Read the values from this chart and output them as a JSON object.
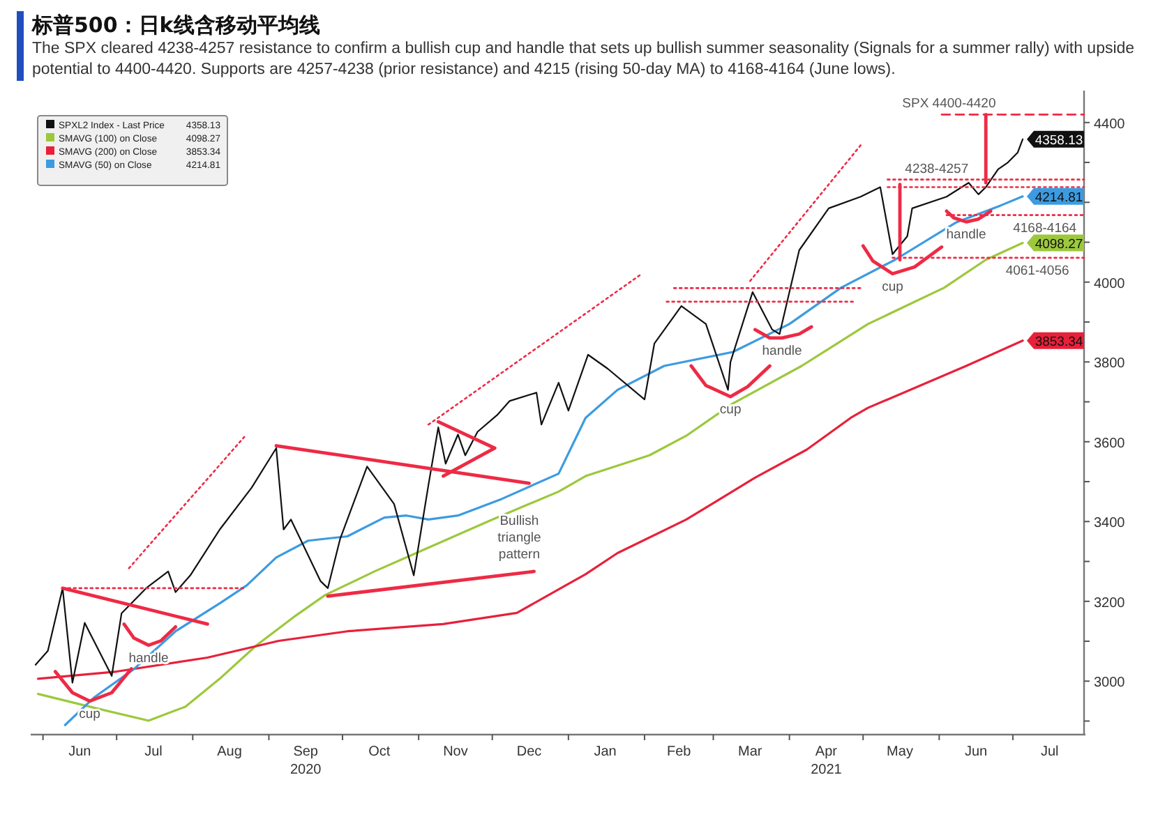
{
  "chart_data": {
    "type": "line",
    "title": "标普500：日k线含移动平均线",
    "subtitle": "The SPX cleared 4238-4257 resistance to confirm a bullish cup and handle that sets up bullish summer seasonality (Signals for a summer rally) with upside potential to 4400-4420. Supports are 4257-4238 (prior resistance) and 4215 (rising 50-day MA) to 4168-4164 (June lows).",
    "xlim": [
      "2020-05-27",
      "2021-07-30"
    ],
    "xticks": [
      {
        "value": "2020-06-01",
        "label": null
      },
      {
        "value": "2020-06-16",
        "label": "Jun"
      },
      {
        "value": "2020-07-01",
        "label": null
      },
      {
        "value": "2020-07-16",
        "label": "Jul"
      },
      {
        "value": "2020-08-01",
        "label": null
      },
      {
        "value": "2020-08-16",
        "label": "Aug"
      },
      {
        "value": "2020-09-01",
        "label": null
      },
      {
        "value": "2020-09-16",
        "label": "Sep\n2020"
      },
      {
        "value": "2020-10-01",
        "label": null
      },
      {
        "value": "2020-10-16",
        "label": "Oct"
      },
      {
        "value": "2020-11-01",
        "label": null
      },
      {
        "value": "2020-11-16",
        "label": "Nov"
      },
      {
        "value": "2020-12-01",
        "label": null
      },
      {
        "value": "2020-12-16",
        "label": "Dec"
      },
      {
        "value": "2021-01-01",
        "label": null
      },
      {
        "value": "2021-01-16",
        "label": "Jan"
      },
      {
        "value": "2021-02-01",
        "label": null
      },
      {
        "value": "2021-02-15",
        "label": "Feb"
      },
      {
        "value": "2021-03-01",
        "label": null
      },
      {
        "value": "2021-03-16",
        "label": "Mar"
      },
      {
        "value": "2021-04-01",
        "label": null
      },
      {
        "value": "2021-04-16",
        "label": "Apr\n2021"
      },
      {
        "value": "2021-05-01",
        "label": null
      },
      {
        "value": "2021-05-16",
        "label": "May"
      },
      {
        "value": "2021-06-01",
        "label": null
      },
      {
        "value": "2021-06-16",
        "label": "Jun"
      },
      {
        "value": "2021-07-01",
        "label": null
      },
      {
        "value": "2021-07-16",
        "label": "Jul"
      }
    ],
    "ylim": [
      2866,
      4480
    ],
    "yticks": [
      {
        "value": 2900,
        "label": null
      },
      3000,
      {
        "value": 3100,
        "label": null
      },
      3200,
      {
        "value": 3300,
        "label": null
      },
      3400,
      {
        "value": 3500,
        "label": null
      },
      3600,
      {
        "value": 3700,
        "label": null
      },
      3800,
      {
        "value": 3900,
        "label": null
      },
      4000,
      {
        "value": 4100,
        "label": null
      },
      {
        "value": 4200,
        "label": null
      },
      {
        "value": 4300,
        "label": null
      },
      4400
    ],
    "grid": false,
    "legend": "top left",
    "marker": "none",
    "series": [
      {
        "name": "SPXL2 Index - Last Price",
        "color": "#111111",
        "line_style": "solid",
        "x": [
          "2020-05-29",
          "2020-06-03",
          "2020-06-09",
          "2020-06-13",
          "2020-06-18",
          "2020-06-29",
          "2020-07-03",
          "2020-07-13",
          "2020-07-22",
          "2020-07-25",
          "2020-07-31",
          "2020-08-12",
          "2020-08-25",
          "2020-09-04",
          "2020-09-07",
          "2020-09-10",
          "2020-09-22",
          "2020-09-25",
          "2020-09-30",
          "2020-10-11",
          "2020-10-22",
          "2020-10-30",
          "2020-11-05",
          "2020-11-09",
          "2020-11-12",
          "2020-11-17",
          "2020-11-20",
          "2020-11-25",
          "2020-12-03",
          "2020-12-08",
          "2020-12-19",
          "2020-12-21",
          "2020-12-28",
          "2021-01-01",
          "2021-01-09",
          "2021-01-17",
          "2021-02-01",
          "2021-02-05",
          "2021-02-16",
          "2021-02-26",
          "2021-03-07",
          "2021-03-08",
          "2021-03-17",
          "2021-03-25",
          "2021-03-28",
          "2021-04-01",
          "2021-04-05",
          "2021-04-17",
          "2021-04-30",
          "2021-05-08",
          "2021-05-13",
          "2021-05-19",
          "2021-05-21",
          "2021-06-04",
          "2021-06-13",
          "2021-06-17",
          "2021-06-20",
          "2021-06-25",
          "2021-06-29",
          "2021-07-03",
          "2021-07-05"
        ],
        "values": [
          3041,
          3076,
          3233,
          2996,
          3146,
          3013,
          3170,
          3233,
          3275,
          3223,
          3265,
          3380,
          3485,
          3584,
          3380,
          3405,
          3251,
          3233,
          3356,
          3538,
          3444,
          3265,
          3492,
          3636,
          3545,
          3618,
          3566,
          3625,
          3667,
          3702,
          3723,
          3643,
          3748,
          3678,
          3818,
          3783,
          3706,
          3846,
          3940,
          3895,
          3730,
          3800,
          3975,
          3881,
          3870,
          3975,
          4080,
          4185,
          4214,
          4238,
          4070,
          4115,
          4185,
          4214,
          4249,
          4220,
          4238,
          4283,
          4300,
          4325,
          4358.13
        ],
        "value_labels": [
          null,
          null,
          null,
          null,
          null,
          null,
          null,
          null,
          null,
          null,
          null,
          null,
          null,
          null,
          null,
          null,
          null,
          null,
          null,
          null,
          null,
          null,
          null,
          null,
          null,
          null,
          null,
          null,
          null,
          null,
          null,
          null,
          null,
          null,
          null,
          null,
          null,
          null,
          null,
          null,
          null,
          null,
          null,
          null,
          null,
          null,
          null,
          null,
          null,
          null,
          null,
          null,
          null,
          null,
          null,
          null,
          null,
          null,
          null,
          null,
          "4358.13"
        ]
      },
      {
        "name": "SMAVG (100)  on Close",
        "color": "#9cc83c",
        "line_style": "solid",
        "x": [
          "2020-05-30",
          "2020-06-22",
          "2020-07-14",
          "2020-07-29",
          "2020-08-12",
          "2020-08-27",
          "2020-09-11",
          "2020-09-24",
          "2020-10-14",
          "2020-10-31",
          "2020-12-01",
          "2020-12-28",
          "2021-01-08",
          "2021-02-03",
          "2021-02-18",
          "2021-03-09",
          "2021-04-06",
          "2021-05-03",
          "2021-06-03",
          "2021-06-20",
          "2021-07-05"
        ],
        "values": [
          2968,
          2933,
          2901,
          2936,
          3006,
          3090,
          3160,
          3216,
          3275,
          3321,
          3405,
          3475,
          3514,
          3566,
          3615,
          3696,
          3790,
          3895,
          3986,
          4056,
          4098.27
        ],
        "value_labels": [
          null,
          null,
          null,
          null,
          null,
          null,
          null,
          null,
          null,
          null,
          null,
          null,
          null,
          null,
          null,
          null,
          null,
          null,
          null,
          null,
          "4098.27"
        ]
      },
      {
        "name": "SMAVG (200)  on Close",
        "color": "#e8203a",
        "line_style": "solid",
        "x": [
          "2020-05-30",
          "2020-07-01",
          "2020-08-07",
          "2020-09-05",
          "2020-10-03",
          "2020-11-11",
          "2020-12-11",
          "2020-12-28",
          "2021-01-08",
          "2021-01-21",
          "2021-02-18",
          "2021-03-18",
          "2021-04-08",
          "2021-04-26",
          "2021-05-03",
          "2021-06-12",
          "2021-07-05"
        ],
        "values": [
          3006,
          3024,
          3059,
          3101,
          3125,
          3143,
          3171,
          3230,
          3268,
          3321,
          3405,
          3510,
          3580,
          3660,
          3685,
          3790,
          3853.34
        ],
        "value_labels": [
          null,
          null,
          null,
          null,
          null,
          null,
          null,
          null,
          null,
          null,
          null,
          null,
          null,
          null,
          null,
          null,
          "3853.34"
        ]
      },
      {
        "name": "SMAVG (50)  on Close",
        "color": "#3c9be0",
        "line_style": "solid",
        "x": [
          "2020-06-10",
          "2020-06-22",
          "2020-07-08",
          "2020-07-25",
          "2020-08-12",
          "2020-08-23",
          "2020-09-04",
          "2020-09-17",
          "2020-10-03",
          "2020-10-18",
          "2020-10-27",
          "2020-11-05",
          "2020-11-17",
          "2020-12-05",
          "2020-12-28",
          "2021-01-08",
          "2021-01-21",
          "2021-02-09",
          "2021-03-09",
          "2021-04-01",
          "2021-04-22",
          "2021-05-14",
          "2021-06-08",
          "2021-06-26",
          "2021-07-05"
        ],
        "values": [
          2890,
          2960,
          3030,
          3125,
          3195,
          3240,
          3310,
          3352,
          3363,
          3410,
          3415,
          3405,
          3415,
          3457,
          3520,
          3660,
          3730,
          3790,
          3825,
          3895,
          3986,
          4056,
          4150,
          4192,
          4214.81
        ],
        "value_labels": [
          null,
          null,
          null,
          null,
          null,
          null,
          null,
          null,
          null,
          null,
          null,
          null,
          null,
          null,
          null,
          null,
          null,
          null,
          null,
          null,
          null,
          null,
          null,
          null,
          "4214.81"
        ]
      },
      {
        "color": "#ee2a45",
        "line_style": "solid",
        "x": [
          "2020-06-09",
          "2020-08-07"
        ],
        "values": [
          3233,
          3143
        ]
      },
      {
        "color": "#ee2a45",
        "line_style": "solid",
        "x": [
          "2020-09-04",
          "2020-12-16"
        ],
        "values": [
          3590,
          3496
        ]
      },
      {
        "color": "#ee2a45",
        "line_style": "solid",
        "x": [
          "2020-09-25",
          "2020-12-18"
        ],
        "values": [
          3213,
          3275
        ]
      },
      {
        "color": "#ee2a45",
        "line_style": "solid",
        "x": [
          "2020-11-09",
          "2020-12-02",
          "2020-11-11"
        ],
        "values": [
          3650,
          3584,
          3514
        ]
      },
      {
        "color": "#ee2a45",
        "line_style": "dotted",
        "x": [
          "2020-06-09",
          "2020-08-22"
        ],
        "values": [
          3233,
          3233
        ]
      },
      {
        "color": "#ee2a45",
        "line_style": "dotted",
        "x": [
          "2021-02-13",
          "2021-04-30"
        ],
        "values": [
          3985,
          3985
        ]
      },
      {
        "color": "#ee2a45",
        "line_style": "dotted",
        "x": [
          "2021-02-10",
          "2021-04-27"
        ],
        "values": [
          3951,
          3951
        ]
      },
      {
        "color": "#ee2a45",
        "line_style": "dotted",
        "x": [
          "2021-05-11",
          "2021-07-30"
        ],
        "values": [
          4257,
          4257
        ]
      },
      {
        "color": "#ee2a45",
        "line_style": "dotted",
        "x": [
          "2021-05-11",
          "2021-07-30"
        ],
        "values": [
          4238,
          4238
        ]
      },
      {
        "color": "#ee2a45",
        "line_style": "dashed",
        "x": [
          "2021-06-02",
          "2021-07-30"
        ],
        "values": [
          4420,
          4420
        ]
      },
      {
        "color": "#ee2a45",
        "line_style": "dotted",
        "x": [
          "2021-06-04",
          "2021-07-30"
        ],
        "values": [
          4168,
          4168
        ]
      },
      {
        "color": "#ee2a45",
        "line_style": "dotted",
        "x": [
          "2021-05-13",
          "2021-07-30"
        ],
        "values": [
          4061,
          4061
        ]
      },
      {
        "color": "#ee2a45",
        "line_style": "dotted",
        "x": [
          "2020-07-06",
          "2020-08-22"
        ],
        "values": [
          3283,
          3612
        ]
      },
      {
        "color": "#ee2a45",
        "line_style": "dotted",
        "x": [
          "2020-11-05",
          "2021-01-30"
        ],
        "values": [
          3643,
          4017
        ]
      },
      {
        "color": "#ee2a45",
        "line_style": "dotted",
        "x": [
          "2021-03-16",
          "2021-04-30"
        ],
        "values": [
          4003,
          4343
        ]
      },
      {
        "color": "#ee2a45",
        "line_style": "solid",
        "x": [
          "2021-05-16",
          "2021-05-16"
        ],
        "values": [
          4056,
          4245
        ]
      },
      {
        "color": "#ee2a45",
        "line_style": "solid",
        "x": [
          "2021-06-20",
          "2021-06-20"
        ],
        "values": [
          4249,
          4420
        ]
      },
      {
        "color": "#ee2a45",
        "line_style": "solid",
        "x": [
          "2020-06-06",
          "2020-06-13",
          "2020-06-20",
          "2020-06-29",
          "2020-07-07"
        ],
        "values": [
          3024,
          2971,
          2950,
          2971,
          3031
        ]
      },
      {
        "color": "#ee2a45",
        "line_style": "solid",
        "x": [
          "2020-07-04",
          "2020-07-08",
          "2020-07-14",
          "2020-07-19",
          "2020-07-25"
        ],
        "values": [
          3143,
          3108,
          3090,
          3101,
          3136
        ]
      },
      {
        "color": "#ee2a45",
        "line_style": "solid",
        "x": [
          "2021-02-20",
          "2021-02-26",
          "2021-03-08",
          "2021-03-15",
          "2021-03-24"
        ],
        "values": [
          3790,
          3741,
          3713,
          3738,
          3790
        ]
      },
      {
        "color": "#ee2a45",
        "line_style": "solid",
        "x": [
          "2021-03-18",
          "2021-03-24",
          "2021-03-29",
          "2021-04-05",
          "2021-04-10"
        ],
        "values": [
          3881,
          3860,
          3860,
          3870,
          3888
        ]
      },
      {
        "color": "#ee2a45",
        "line_style": "solid",
        "x": [
          "2021-05-01",
          "2021-05-05",
          "2021-05-13",
          "2021-05-22",
          "2021-06-02"
        ],
        "values": [
          4091,
          4053,
          4021,
          4038,
          4088
        ]
      },
      {
        "color": "#ee2a45",
        "line_style": "solid",
        "x": [
          "2021-06-04",
          "2021-06-07",
          "2021-06-12",
          "2021-06-17",
          "2021-06-22"
        ],
        "values": [
          4178,
          4161,
          4151,
          4158,
          4178
        ]
      }
    ],
    "annotations": [
      {
        "text": "cup",
        "x": "2020-06-20",
        "y": 2950
      },
      {
        "text": "handle",
        "x": "2020-07-14",
        "y": 3090
      },
      {
        "text": "Bullish\ntriangle\npattern",
        "x": "2020-12-12",
        "y": 3434
      },
      {
        "text": "cup",
        "x": "2021-03-08",
        "y": 3713
      },
      {
        "text": "handle",
        "x": "2021-03-29",
        "y": 3860
      },
      {
        "text": "cup",
        "x": "2021-05-13",
        "y": 4021
      },
      {
        "text": "handle",
        "x": "2021-06-12",
        "y": 4151
      },
      {
        "text": "SPX 4400-4420",
        "x": "2021-06-05",
        "y": 4420
      },
      {
        "text": "4238-4257",
        "x": "2021-05-31",
        "y": 4257
      },
      {
        "text": "4168-4164",
        "x": "2021-07-14",
        "y": 4168
      },
      {
        "text": "4061-4056",
        "x": "2021-07-11",
        "y": 4061
      }
    ]
  }
}
